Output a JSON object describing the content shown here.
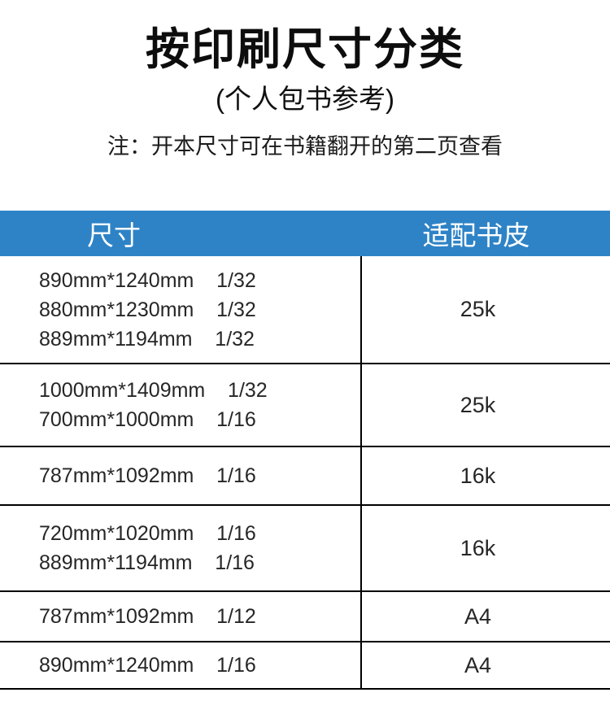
{
  "header": {
    "title": "按印刷尺寸分类",
    "subtitle": "(个人包书参考)",
    "note": "注：开本尺寸可在书籍翻开的第二页查看"
  },
  "colors": {
    "header_bar_bg": "#2e83c6",
    "header_bar_text": "#ffffff",
    "table_border": "#000000",
    "body_text": "#262626"
  },
  "table": {
    "columns": [
      "尺寸",
      "适配书皮"
    ],
    "rows": [
      {
        "sizes": [
          "890mm*1240mm    1/32",
          "880mm*1230mm    1/32",
          "889mm*1194mm    1/32"
        ],
        "cover": "25k"
      },
      {
        "sizes": [
          "1000mm*1409mm    1/32",
          "700mm*1000mm    1/16"
        ],
        "cover": "25k"
      },
      {
        "sizes": [
          "787mm*1092mm    1/16"
        ],
        "cover": "16k"
      },
      {
        "sizes": [
          "720mm*1020mm    1/16",
          "889mm*1194mm    1/16"
        ],
        "cover": "16k"
      },
      {
        "sizes": [
          "787mm*1092mm    1/12"
        ],
        "cover": "A4"
      },
      {
        "sizes": [
          "890mm*1240mm    1/16"
        ],
        "cover": "A4"
      }
    ]
  }
}
